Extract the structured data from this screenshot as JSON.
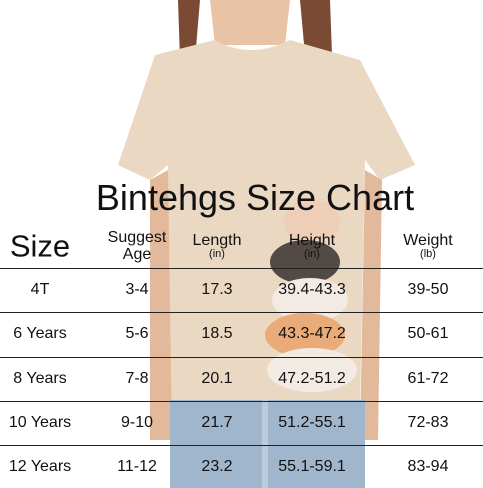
{
  "title": "Bintehgs Size Chart",
  "header": [
    {
      "label": "Size"
    },
    {
      "label": "Suggest Age"
    },
    {
      "label": "Length",
      "unit": "(in)"
    },
    {
      "label": "Height",
      "unit": "(in)"
    },
    {
      "label": "Weight",
      "unit": "(lb)"
    }
  ],
  "rows": [
    [
      "4T",
      "3-4",
      "17.3",
      "39.4-43.3",
      "39-50"
    ],
    [
      "6 Years",
      "5-6",
      "18.5",
      "43.3-47.2",
      "50-61"
    ],
    [
      "8 Years",
      "7-8",
      "20.1",
      "47.2-51.2",
      "61-72"
    ],
    [
      "10 Years",
      "9-10",
      "21.7",
      "51.2-55.1",
      "72-83"
    ],
    [
      "12 Years",
      "11-12",
      "23.2",
      "55.1-59.1",
      "83-94"
    ]
  ]
}
